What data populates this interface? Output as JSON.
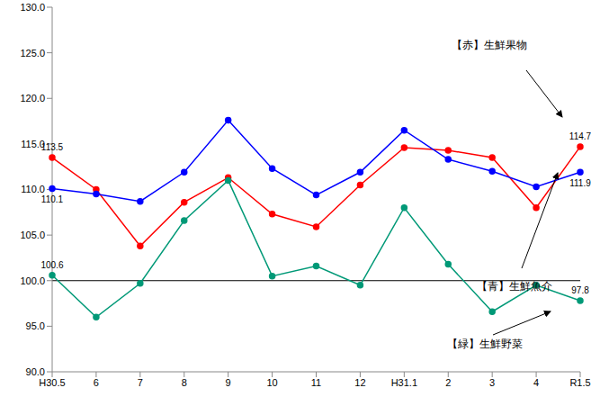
{
  "chart_data": {
    "type": "line",
    "categories": [
      "H30.5",
      "6",
      "7",
      "8",
      "9",
      "10",
      "11",
      "12",
      "H31.1",
      "2",
      "3",
      "4",
      "R1.5"
    ],
    "series": [
      {
        "name": "【赤】生鮮果物",
        "color": "#ff0000",
        "marker": "circle",
        "values": [
          113.5,
          110.0,
          103.8,
          108.6,
          111.3,
          107.3,
          105.9,
          110.5,
          114.6,
          114.3,
          113.5,
          108.0,
          114.7
        ],
        "value_labels": [
          "113.5",
          null,
          null,
          null,
          null,
          null,
          null,
          null,
          null,
          null,
          null,
          null,
          "114.7"
        ]
      },
      {
        "name": "【青】生鮮魚介",
        "color": "#0000ff",
        "marker": "circle",
        "values": [
          110.1,
          109.5,
          108.7,
          111.9,
          117.6,
          112.3,
          109.4,
          111.9,
          116.5,
          113.3,
          112.0,
          110.3,
          111.9
        ],
        "value_labels": [
          "110.1",
          null,
          null,
          null,
          null,
          null,
          null,
          null,
          null,
          null,
          null,
          null,
          "111.9"
        ]
      },
      {
        "name": "【緑】生鮮野菜",
        "color": "#009977",
        "marker": "circle",
        "values": [
          100.6,
          96.0,
          99.7,
          106.6,
          111.0,
          100.5,
          101.6,
          99.5,
          108.0,
          101.8,
          96.6,
          99.5,
          97.8
        ],
        "value_labels": [
          "100.6",
          null,
          null,
          null,
          null,
          null,
          null,
          null,
          null,
          null,
          null,
          null,
          "97.8"
        ]
      }
    ],
    "ylim": [
      90,
      130
    ],
    "yticks": [
      {
        "value": 90,
        "label": "90.0"
      },
      {
        "value": 95,
        "label": "95.0"
      },
      {
        "value": 100,
        "label": "100.0"
      },
      {
        "value": 105,
        "label": "105.0"
      },
      {
        "value": 110,
        "label": "110.0"
      },
      {
        "value": 115,
        "label": "115.0"
      },
      {
        "value": 120,
        "label": "120.0"
      },
      {
        "value": 125,
        "label": "125.0"
      },
      {
        "value": 130,
        "label": "130.0"
      }
    ],
    "baseline": 100,
    "grid": false,
    "data_labels": true
  }
}
